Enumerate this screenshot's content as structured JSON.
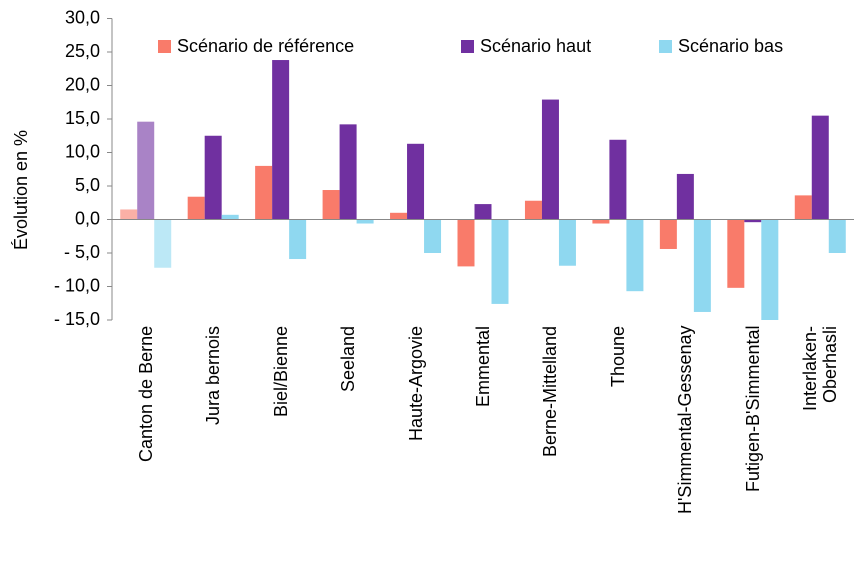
{
  "chart_data": {
    "type": "bar",
    "y_label": "Évolution en  %",
    "categories": [
      "Canton de Berne",
      "Jura bernois",
      "Biel/Bienne",
      "Seeland",
      "Haute-Argovie",
      "Emmental",
      "Berne-Mittelland",
      "Thoune",
      "H'Simmental-Gessenay",
      "Futigen-B'Simmental",
      "Interlaken-\nOberhasli"
    ],
    "series": [
      {
        "name": "Scénario de référence",
        "color": "#f97b6a",
        "values": [
          1.5,
          3.4,
          8.0,
          4.4,
          1.0,
          -7.0,
          2.8,
          -0.6,
          -4.4,
          -10.2,
          3.6
        ]
      },
      {
        "name": "Scénario haut",
        "color": "#7030a0",
        "values": [
          14.6,
          12.5,
          23.8,
          14.2,
          11.3,
          2.3,
          17.9,
          11.9,
          6.8,
          -0.4,
          15.5
        ]
      },
      {
        "name": "Scénario bas",
        "color": "#8fd8f0",
        "values": [
          -7.2,
          0.7,
          -5.9,
          -0.6,
          -5.0,
          -12.6,
          -6.9,
          -10.7,
          -13.8,
          -15.3,
          -5.0
        ]
      }
    ],
    "ylim": [
      -15,
      30
    ],
    "yticks": [
      {
        "value": -15,
        "label": "- 15,0"
      },
      {
        "value": -10,
        "label": "- 10,0"
      },
      {
        "value": -5,
        "label": "- 5,0"
      },
      {
        "value": 0,
        "label": "0,0"
      },
      {
        "value": 5,
        "label": "5,0"
      },
      {
        "value": 10,
        "label": "10,0"
      },
      {
        "value": 15,
        "label": "15,0"
      },
      {
        "value": 20,
        "label": "20,0"
      },
      {
        "value": 25,
        "label": "25,0"
      },
      {
        "value": 30,
        "label": "30,0"
      }
    ],
    "legend": "top",
    "grid": false
  }
}
